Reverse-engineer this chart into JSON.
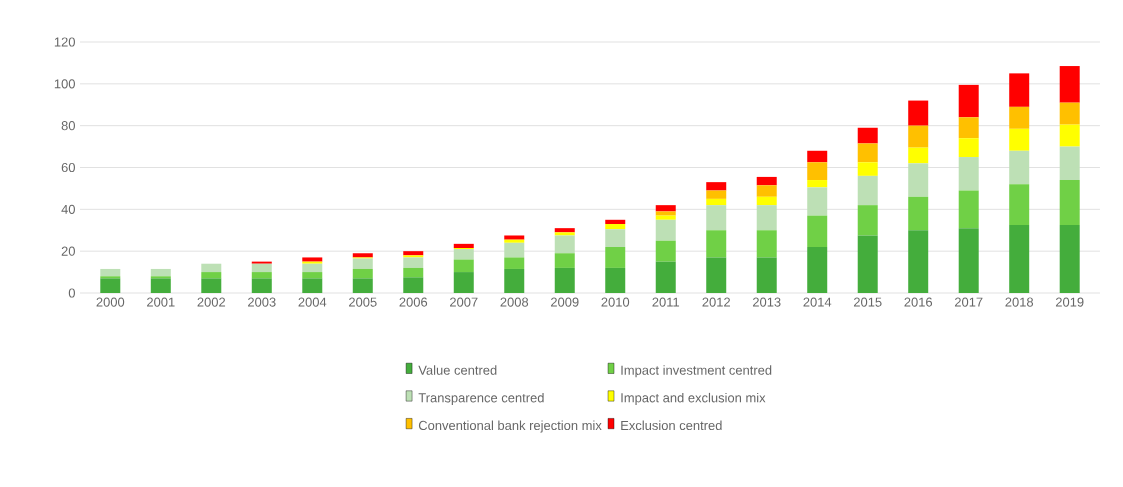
{
  "chart_data": {
    "type": "bar",
    "stacked": true,
    "categories": [
      "2000",
      "2001",
      "2002",
      "2003",
      "2004",
      "2005",
      "2006",
      "2007",
      "2008",
      "2009",
      "2010",
      "2011",
      "2012",
      "2013",
      "2014",
      "2015",
      "2016",
      "2017",
      "2018",
      "2019"
    ],
    "series": [
      {
        "name": "Value centred",
        "color": "#44ad3c",
        "values": [
          7,
          7,
          7,
          7,
          7,
          7,
          7.5,
          10,
          11.5,
          12,
          12,
          15,
          17,
          17,
          22,
          27.5,
          30,
          31,
          32.5,
          32.5
        ]
      },
      {
        "name": "Impact investment centred",
        "color": "#70d046",
        "values": [
          1,
          1,
          3,
          3,
          3,
          4.5,
          4.5,
          6,
          5.5,
          7,
          10,
          10,
          13,
          13,
          15,
          14.5,
          16,
          18,
          19.5,
          21.5
        ]
      },
      {
        "name": "Transparence centred",
        "color": "#bde0b5",
        "values": [
          3.5,
          3.5,
          4,
          4,
          4,
          5,
          5,
          5,
          7,
          8.5,
          8.5,
          10,
          12,
          12,
          13.5,
          14,
          16,
          16,
          16,
          16
        ]
      },
      {
        "name": "Impact and exclusion mix",
        "color": "#ffff00",
        "values": [
          0,
          0,
          0,
          0,
          1,
          0.5,
          1,
          0.5,
          1.5,
          1.5,
          2.5,
          2,
          3,
          4,
          3.5,
          6.5,
          7.5,
          9,
          10.5,
          10.5
        ]
      },
      {
        "name": "Conventional bank rejection mix",
        "color": "#ffc000",
        "values": [
          0,
          0,
          0,
          0,
          0,
          0,
          0,
          0,
          0,
          0,
          0,
          2,
          4,
          5.5,
          8.5,
          9,
          10.5,
          10,
          10.5,
          10.5
        ]
      },
      {
        "name": "Exclusion centred",
        "color": "#ff0000",
        "values": [
          0,
          0,
          0,
          1,
          2,
          2,
          2,
          2,
          2,
          2,
          2,
          3,
          4,
          4,
          5.5,
          7.5,
          12,
          15.5,
          16,
          17.5
        ]
      }
    ],
    "ylim": [
      0,
      120
    ],
    "yticks": [
      0,
      20,
      40,
      60,
      80,
      100,
      120
    ],
    "grid": "y",
    "legend": "bottom"
  }
}
